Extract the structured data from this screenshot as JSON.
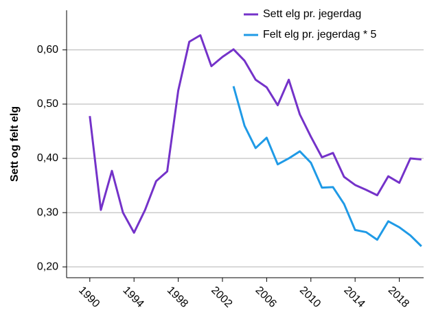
{
  "chart_data": {
    "type": "line",
    "y_label": "Sett og felt elg",
    "x": [
      1990,
      1991,
      1992,
      1993,
      1994,
      1995,
      1996,
      1997,
      1998,
      1999,
      2000,
      2001,
      2002,
      2003,
      2004,
      2005,
      2006,
      2007,
      2008,
      2009,
      2010,
      2011,
      2012,
      2013,
      2014,
      2015,
      2016,
      2017,
      2018,
      2019,
      2020
    ],
    "series": [
      {
        "name": "Sett elg pr. jegerdag",
        "color": "#7432c9",
        "values": [
          0.478,
          0.305,
          0.377,
          0.3,
          0.263,
          0.305,
          0.358,
          0.376,
          0.525,
          0.615,
          0.627,
          0.57,
          0.587,
          0.601,
          0.58,
          0.545,
          0.531,
          0.498,
          0.545,
          0.481,
          0.44,
          0.402,
          0.41,
          0.366,
          0.351,
          0.342,
          0.332,
          0.367,
          0.355,
          0.4,
          0.398
        ]
      },
      {
        "name": "Felt elg pr. jegerdag * 5",
        "color": "#1f9ae6",
        "values": [
          null,
          null,
          null,
          null,
          null,
          null,
          null,
          null,
          null,
          null,
          null,
          null,
          null,
          0.533,
          0.46,
          0.419,
          0.438,
          0.389,
          0.4,
          0.413,
          0.392,
          0.346,
          0.347,
          0.316,
          0.268,
          0.264,
          0.25,
          0.284,
          0.273,
          0.258,
          0.238
        ]
      }
    ],
    "xlim": [
      1987.9,
      2020.2
    ],
    "xticks": [
      1990,
      1994,
      1998,
      2002,
      2006,
      2010,
      2014,
      2018
    ],
    "ylim": [
      0.18,
      0.673
    ],
    "yticks": [
      {
        "value": 0.2,
        "label": "0,20"
      },
      {
        "value": 0.3,
        "label": "0,30"
      },
      {
        "value": 0.4,
        "label": "0,40"
      },
      {
        "value": 0.5,
        "label": "0,50"
      },
      {
        "value": 0.6,
        "label": "0,60"
      }
    ],
    "grid": true,
    "legend": "top-right"
  }
}
